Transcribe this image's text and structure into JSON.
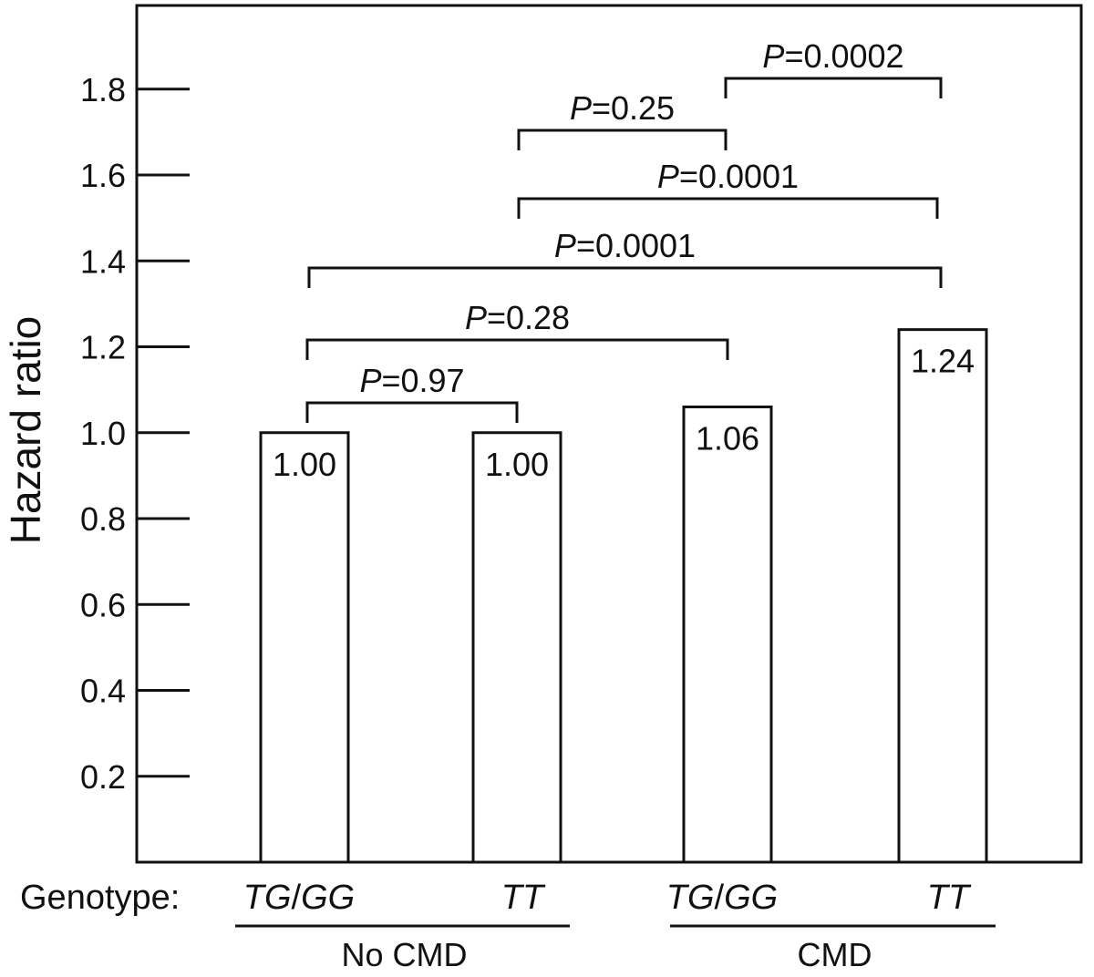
{
  "chart_data": {
    "type": "bar",
    "ylabel": "Hazard ratio",
    "ylim": [
      0,
      2.0
    ],
    "yticks": [
      "0.2",
      "0.4",
      "0.6",
      "0.8",
      "1.0",
      "1.2",
      "1.4",
      "1.6",
      "1.8"
    ],
    "genotype_label": "Genotype:",
    "categories": [
      {
        "genotype": "TG/GG",
        "genotype_parts": [
          "TG",
          "/",
          "GG"
        ],
        "group": "No CMD"
      },
      {
        "genotype": "TT",
        "genotype_parts": [
          "TT"
        ],
        "group": "No CMD"
      },
      {
        "genotype": "TG/GG",
        "genotype_parts": [
          "TG",
          "/",
          "GG"
        ],
        "group": "CMD"
      },
      {
        "genotype": "TT",
        "genotype_parts": [
          "TT"
        ],
        "group": "CMD"
      }
    ],
    "values": [
      1.0,
      1.0,
      1.06,
      1.24
    ],
    "value_labels": [
      "1.00",
      "1.00",
      "1.06",
      "1.24"
    ],
    "groups": [
      {
        "label": "No CMD",
        "categories": [
          0,
          1
        ]
      },
      {
        "label": "CMD",
        "categories": [
          2,
          3
        ]
      }
    ],
    "comparisons": [
      {
        "from": 0,
        "to": 1,
        "p_symbol": "P",
        "p_value": "=0.97"
      },
      {
        "from": 0,
        "to": 2,
        "p_symbol": "P",
        "p_value": "=0.28"
      },
      {
        "from": 0,
        "to": 3,
        "p_symbol": "P",
        "p_value": "=0.0001"
      },
      {
        "from": 1,
        "to": 3,
        "p_symbol": "P",
        "p_value": "=0.0001"
      },
      {
        "from": 1,
        "to": 2,
        "p_symbol": "P",
        "p_value": "=0.25"
      },
      {
        "from": 2,
        "to": 3,
        "p_symbol": "P",
        "p_value": "=0.0002"
      }
    ],
    "grid": false,
    "legend": "none"
  }
}
